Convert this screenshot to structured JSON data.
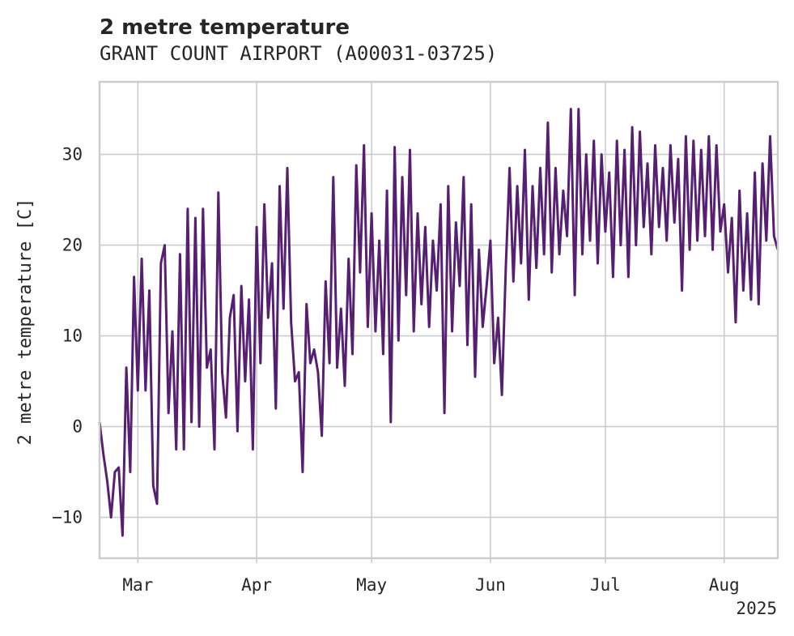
{
  "chart_data": {
    "type": "line",
    "title": "2 metre temperature",
    "subtitle": "GRANT COUNT AIRPORT (A00031-03725)",
    "ylabel": "2 metre temperature [C]",
    "xlabel": "",
    "x_range": [
      "2025-02-19",
      "2025-08-15"
    ],
    "ylim": [
      -14.5,
      38
    ],
    "grid": true,
    "x_ticks": [
      {
        "label": "Mar",
        "date": "2025-03-01"
      },
      {
        "label": "Apr",
        "date": "2025-04-01"
      },
      {
        "label": "May",
        "date": "2025-05-01"
      },
      {
        "label": "Jun",
        "date": "2025-06-01"
      },
      {
        "label": "Jul",
        "date": "2025-07-01"
      },
      {
        "label": "Aug",
        "date": "2025-08-01"
      }
    ],
    "x_offset_label": "2025",
    "y_ticks": [
      -10,
      0,
      10,
      20,
      30
    ],
    "series": [
      {
        "name": "",
        "color": "#561f72",
        "points": [
          [
            "2025-02-19",
            0.5
          ],
          [
            "2025-02-20",
            -3.0
          ],
          [
            "2025-02-21",
            -6.0
          ],
          [
            "2025-02-22",
            -10.0
          ],
          [
            "2025-02-23",
            -5.0
          ],
          [
            "2025-02-24",
            -4.5
          ],
          [
            "2025-02-25",
            -12.0
          ],
          [
            "2025-02-26",
            6.5
          ],
          [
            "2025-02-27",
            -5.0
          ],
          [
            "2025-02-28",
            16.5
          ],
          [
            "2025-03-01",
            4.0
          ],
          [
            "2025-03-02",
            18.5
          ],
          [
            "2025-03-03",
            4.0
          ],
          [
            "2025-03-04",
            15.0
          ],
          [
            "2025-03-05",
            -6.5
          ],
          [
            "2025-03-06",
            -8.5
          ],
          [
            "2025-03-07",
            18.0
          ],
          [
            "2025-03-08",
            20.0
          ],
          [
            "2025-03-09",
            1.5
          ],
          [
            "2025-03-10",
            10.5
          ],
          [
            "2025-03-11",
            -2.5
          ],
          [
            "2025-03-12",
            19.0
          ],
          [
            "2025-03-13",
            -2.5
          ],
          [
            "2025-03-14",
            24.0
          ],
          [
            "2025-03-15",
            0.5
          ],
          [
            "2025-03-16",
            23.0
          ],
          [
            "2025-03-17",
            0.0
          ],
          [
            "2025-03-18",
            24.0
          ],
          [
            "2025-03-19",
            6.5
          ],
          [
            "2025-03-20",
            8.5
          ],
          [
            "2025-03-21",
            -2.5
          ],
          [
            "2025-03-22",
            25.8
          ],
          [
            "2025-03-23",
            6.0
          ],
          [
            "2025-03-24",
            1.0
          ],
          [
            "2025-03-25",
            12.0
          ],
          [
            "2025-03-26",
            14.5
          ],
          [
            "2025-03-27",
            -0.5
          ],
          [
            "2025-03-28",
            15.5
          ],
          [
            "2025-03-29",
            5.0
          ],
          [
            "2025-03-30",
            14.0
          ],
          [
            "2025-03-31",
            -2.5
          ],
          [
            "2025-04-01",
            22.0
          ],
          [
            "2025-04-02",
            7.0
          ],
          [
            "2025-04-03",
            24.5
          ],
          [
            "2025-04-04",
            12.0
          ],
          [
            "2025-04-05",
            18.0
          ],
          [
            "2025-04-06",
            2.0
          ],
          [
            "2025-04-07",
            26.5
          ],
          [
            "2025-04-08",
            13.0
          ],
          [
            "2025-04-09",
            28.5
          ],
          [
            "2025-04-10",
            11.5
          ],
          [
            "2025-04-11",
            5.0
          ],
          [
            "2025-04-12",
            6.0
          ],
          [
            "2025-04-13",
            -5.0
          ],
          [
            "2025-04-14",
            13.5
          ],
          [
            "2025-04-15",
            7.0
          ],
          [
            "2025-04-16",
            8.5
          ],
          [
            "2025-04-17",
            6.0
          ],
          [
            "2025-04-18",
            -1.0
          ],
          [
            "2025-04-19",
            16.0
          ],
          [
            "2025-04-20",
            7.0
          ],
          [
            "2025-04-21",
            27.5
          ],
          [
            "2025-04-22",
            6.5
          ],
          [
            "2025-04-23",
            13.0
          ],
          [
            "2025-04-24",
            4.5
          ],
          [
            "2025-04-25",
            18.5
          ],
          [
            "2025-04-26",
            8.0
          ],
          [
            "2025-04-27",
            28.8
          ],
          [
            "2025-04-28",
            17.0
          ],
          [
            "2025-04-29",
            31.0
          ],
          [
            "2025-04-30",
            11.0
          ],
          [
            "2025-05-01",
            23.5
          ],
          [
            "2025-05-02",
            10.5
          ],
          [
            "2025-05-03",
            20.5
          ],
          [
            "2025-05-04",
            8.0
          ],
          [
            "2025-05-05",
            26.0
          ],
          [
            "2025-05-06",
            0.5
          ],
          [
            "2025-05-07",
            30.8
          ],
          [
            "2025-05-08",
            9.5
          ],
          [
            "2025-05-09",
            27.5
          ],
          [
            "2025-05-10",
            14.5
          ],
          [
            "2025-05-11",
            30.5
          ],
          [
            "2025-05-12",
            10.5
          ],
          [
            "2025-05-13",
            23.5
          ],
          [
            "2025-05-14",
            13.5
          ],
          [
            "2025-05-15",
            22.0
          ],
          [
            "2025-05-16",
            11.0
          ],
          [
            "2025-05-17",
            20.5
          ],
          [
            "2025-05-18",
            15.0
          ],
          [
            "2025-05-19",
            24.5
          ],
          [
            "2025-05-20",
            1.5
          ],
          [
            "2025-05-21",
            26.5
          ],
          [
            "2025-05-22",
            10.5
          ],
          [
            "2025-05-23",
            22.5
          ],
          [
            "2025-05-24",
            15.5
          ],
          [
            "2025-05-25",
            27.5
          ],
          [
            "2025-05-26",
            9.0
          ],
          [
            "2025-05-27",
            24.5
          ],
          [
            "2025-05-28",
            5.5
          ],
          [
            "2025-05-29",
            19.5
          ],
          [
            "2025-05-30",
            11.0
          ],
          [
            "2025-05-31",
            15.5
          ],
          [
            "2025-06-01",
            20.5
          ],
          [
            "2025-06-02",
            7.0
          ],
          [
            "2025-06-03",
            12.0
          ],
          [
            "2025-06-04",
            3.5
          ],
          [
            "2025-06-05",
            17.5
          ],
          [
            "2025-06-06",
            28.5
          ],
          [
            "2025-06-07",
            16.0
          ],
          [
            "2025-06-08",
            26.5
          ],
          [
            "2025-06-09",
            18.0
          ],
          [
            "2025-06-10",
            30.5
          ],
          [
            "2025-06-11",
            14.0
          ],
          [
            "2025-06-12",
            26.5
          ],
          [
            "2025-06-13",
            17.5
          ],
          [
            "2025-06-14",
            28.5
          ],
          [
            "2025-06-15",
            19.0
          ],
          [
            "2025-06-16",
            33.5
          ],
          [
            "2025-06-17",
            17.0
          ],
          [
            "2025-06-18",
            28.5
          ],
          [
            "2025-06-19",
            19.0
          ],
          [
            "2025-06-20",
            26.0
          ],
          [
            "2025-06-21",
            21.0
          ],
          [
            "2025-06-22",
            35.0
          ],
          [
            "2025-06-23",
            14.5
          ],
          [
            "2025-06-24",
            35.0
          ],
          [
            "2025-06-25",
            19.0
          ],
          [
            "2025-06-26",
            30.0
          ],
          [
            "2025-06-27",
            20.5
          ],
          [
            "2025-06-28",
            31.5
          ],
          [
            "2025-06-29",
            18.0
          ],
          [
            "2025-06-30",
            30.0
          ],
          [
            "2025-07-01",
            21.5
          ],
          [
            "2025-07-02",
            28.0
          ],
          [
            "2025-07-03",
            16.5
          ],
          [
            "2025-07-04",
            31.5
          ],
          [
            "2025-07-05",
            20.0
          ],
          [
            "2025-07-06",
            30.5
          ],
          [
            "2025-07-07",
            16.5
          ],
          [
            "2025-07-08",
            33.0
          ],
          [
            "2025-07-09",
            20.0
          ],
          [
            "2025-07-10",
            32.5
          ],
          [
            "2025-07-11",
            22.0
          ],
          [
            "2025-07-12",
            29.0
          ],
          [
            "2025-07-13",
            19.0
          ],
          [
            "2025-07-14",
            31.0
          ],
          [
            "2025-07-15",
            22.0
          ],
          [
            "2025-07-16",
            28.5
          ],
          [
            "2025-07-17",
            20.5
          ],
          [
            "2025-07-18",
            31.0
          ],
          [
            "2025-07-19",
            22.5
          ],
          [
            "2025-07-20",
            29.5
          ],
          [
            "2025-07-21",
            15.0
          ],
          [
            "2025-07-22",
            32.0
          ],
          [
            "2025-07-23",
            19.5
          ],
          [
            "2025-07-24",
            31.5
          ],
          [
            "2025-07-25",
            20.5
          ],
          [
            "2025-07-26",
            30.5
          ],
          [
            "2025-07-27",
            21.0
          ],
          [
            "2025-07-28",
            32.0
          ],
          [
            "2025-07-29",
            19.5
          ],
          [
            "2025-07-30",
            31.0
          ],
          [
            "2025-07-31",
            21.5
          ],
          [
            "2025-08-01",
            24.5
          ],
          [
            "2025-08-02",
            17.0
          ],
          [
            "2025-08-03",
            23.0
          ],
          [
            "2025-08-04",
            11.5
          ],
          [
            "2025-08-05",
            26.0
          ],
          [
            "2025-08-06",
            15.0
          ],
          [
            "2025-08-07",
            23.5
          ],
          [
            "2025-08-08",
            14.0
          ],
          [
            "2025-08-09",
            28.0
          ],
          [
            "2025-08-10",
            13.5
          ],
          [
            "2025-08-11",
            29.0
          ],
          [
            "2025-08-12",
            20.5
          ],
          [
            "2025-08-13",
            32.0
          ],
          [
            "2025-08-14",
            21.0
          ],
          [
            "2025-08-15",
            19.5
          ]
        ]
      }
    ]
  }
}
